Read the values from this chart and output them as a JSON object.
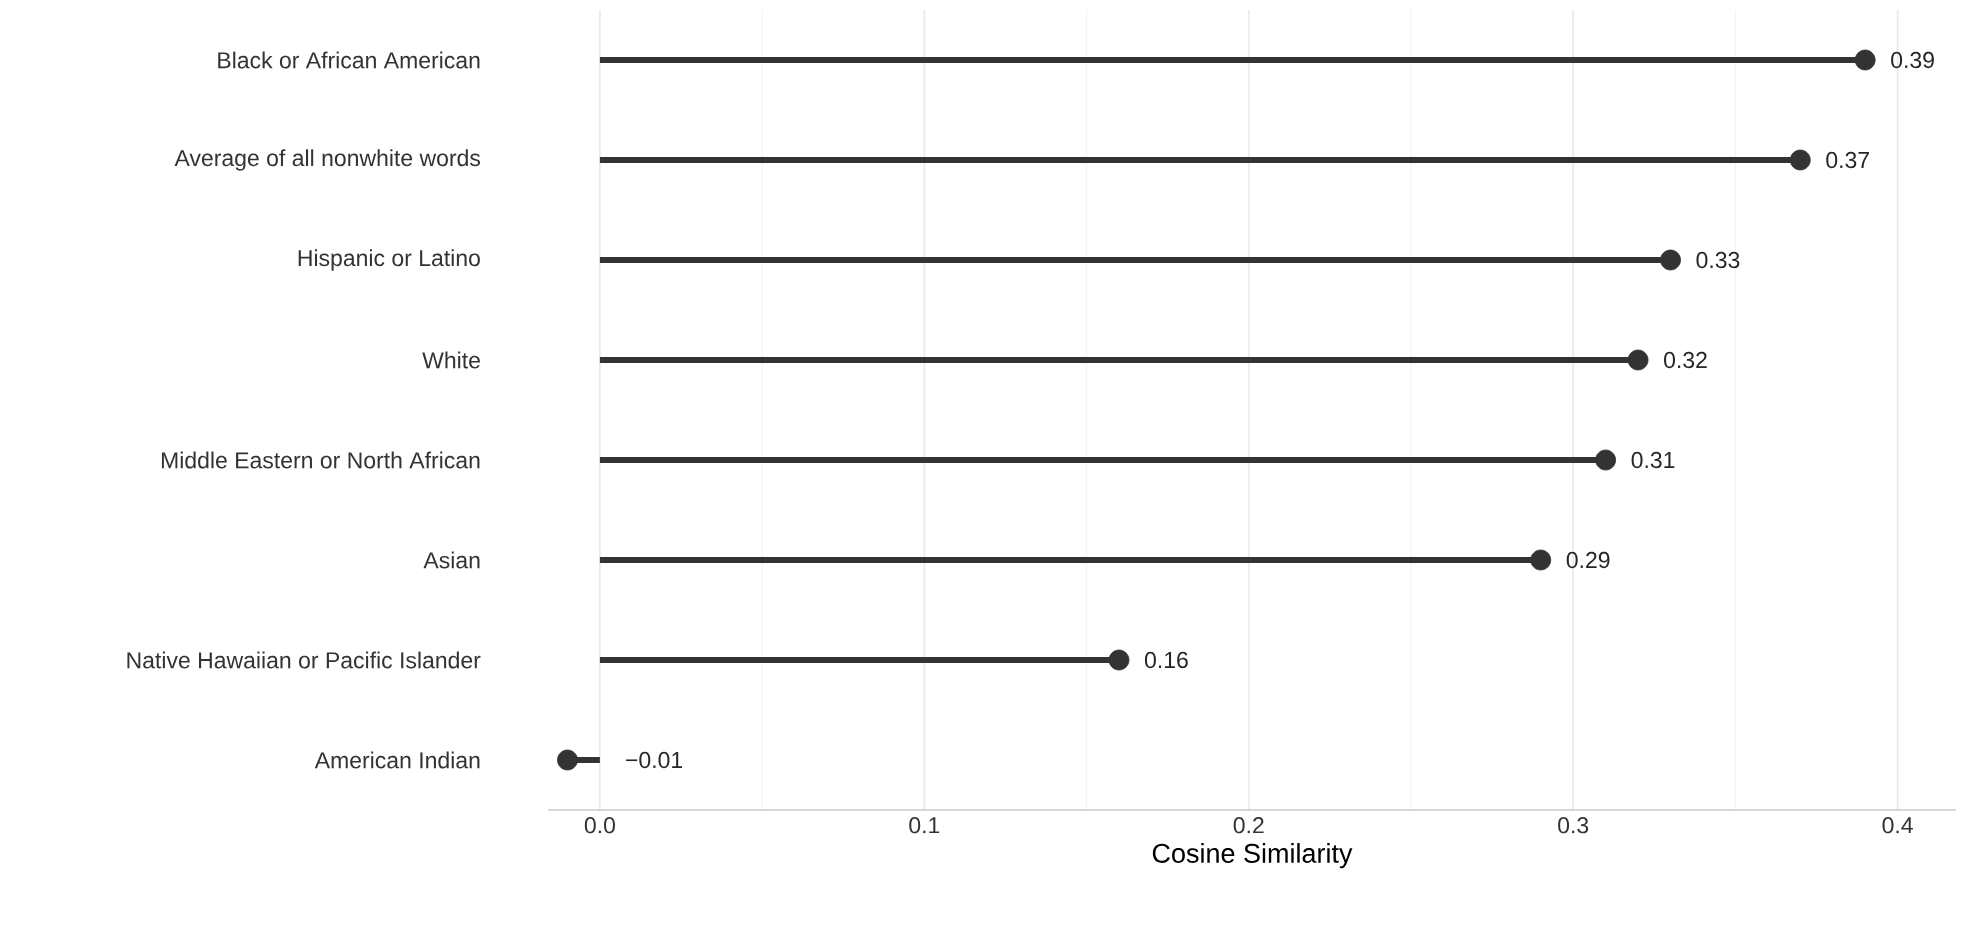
{
  "chart_data": {
    "type": "lollipop",
    "orientation": "horizontal",
    "xlabel": "Cosine Similarity",
    "categories": [
      "Black or African American",
      "Average of all nonwhite words",
      "Hispanic or Latino",
      "White",
      "Middle Eastern or North African",
      "Asian",
      "Native Hawaiian or Pacific Islander",
      "American Indian"
    ],
    "values": [
      0.39,
      0.37,
      0.33,
      0.32,
      0.31,
      0.29,
      0.16,
      -0.01
    ],
    "value_labels": [
      "0.39",
      "0.37",
      "0.33",
      "0.32",
      "0.31",
      "0.29",
      "0.16",
      "−0.01"
    ],
    "color": "#333333",
    "marker": "circle",
    "xlim": [
      -0.016,
      0.418
    ],
    "xticks": [
      {
        "value": 0,
        "label": "0.0"
      },
      0.1,
      0.2,
      0.3,
      0.4
    ],
    "grid": "x"
  }
}
